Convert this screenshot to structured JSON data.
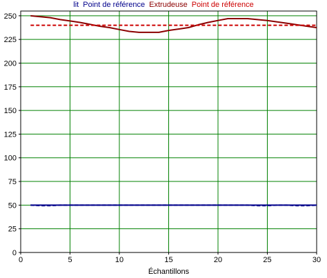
{
  "legend": {
    "items": [
      {
        "label": "lit",
        "color": "#00008b"
      },
      {
        "label": "Point de référence",
        "color": "#00008b"
      },
      {
        "label": "Extrudeuse",
        "color": "#8b0000"
      },
      {
        "label": "Point de référence",
        "color": "#cc0000"
      }
    ]
  },
  "chart_data": {
    "type": "line",
    "title": "",
    "xlabel": "Échantillons",
    "ylabel": "",
    "xlim": [
      0,
      30
    ],
    "ylim": [
      0,
      255
    ],
    "xticks": [
      0,
      5,
      10,
      15,
      20,
      25,
      30
    ],
    "yticks": [
      0,
      25,
      50,
      75,
      100,
      125,
      150,
      175,
      200,
      225,
      250
    ],
    "grid": true,
    "grid_color": "#008000",
    "legend_position": "top",
    "series": [
      {
        "name": "lit",
        "color": "#00008b",
        "style": "solid",
        "x": [
          1,
          2,
          3,
          4,
          5,
          6,
          7,
          8,
          9,
          10,
          11,
          12,
          13,
          14,
          15,
          16,
          17,
          18,
          19,
          20,
          21,
          22,
          23,
          24,
          25,
          26,
          27,
          28,
          29,
          30
        ],
        "y": [
          50,
          50,
          50,
          50,
          50,
          50,
          50,
          50,
          50,
          50,
          50,
          50,
          50,
          50,
          50,
          50,
          50,
          50,
          50,
          50,
          50,
          50,
          50,
          50,
          50,
          50,
          50,
          50,
          50,
          50
        ]
      },
      {
        "name": "Point de référence",
        "color": "#00008b",
        "style": "dashed",
        "x": [
          1,
          2,
          3,
          4,
          5,
          6,
          7,
          8,
          9,
          10,
          11,
          12,
          13,
          14,
          15,
          16,
          17,
          18,
          19,
          20,
          21,
          22,
          23,
          24,
          25,
          26,
          27,
          28,
          29,
          30
        ],
        "y": [
          50,
          49.5,
          49.5,
          50,
          50,
          50,
          50,
          50,
          50,
          50,
          50,
          50,
          50,
          50,
          50,
          50,
          50,
          50,
          50,
          50,
          50,
          50,
          50,
          49.5,
          49.5,
          50,
          50,
          49.5,
          49.5,
          50
        ]
      },
      {
        "name": "Extrudeuse",
        "color": "#8b0000",
        "style": "solid",
        "x": [
          1,
          2,
          3,
          4,
          5,
          6,
          7,
          8,
          9,
          10,
          11,
          12,
          13,
          14,
          15,
          16,
          17,
          18,
          19,
          20,
          21,
          22,
          23,
          24,
          25,
          26,
          27,
          28,
          29,
          30
        ],
        "y": [
          250,
          249,
          248,
          246,
          244.5,
          243,
          241,
          239,
          237.5,
          235.5,
          233.5,
          232.5,
          232.5,
          232.5,
          234.5,
          236,
          237.5,
          240.5,
          243,
          245,
          247,
          247,
          247,
          246,
          245,
          243.5,
          242,
          240.5,
          239,
          237.5
        ]
      },
      {
        "name": "Point de référence",
        "color": "#cc0000",
        "style": "dashed",
        "x": [
          1,
          30
        ],
        "y": [
          240,
          240
        ]
      }
    ]
  }
}
